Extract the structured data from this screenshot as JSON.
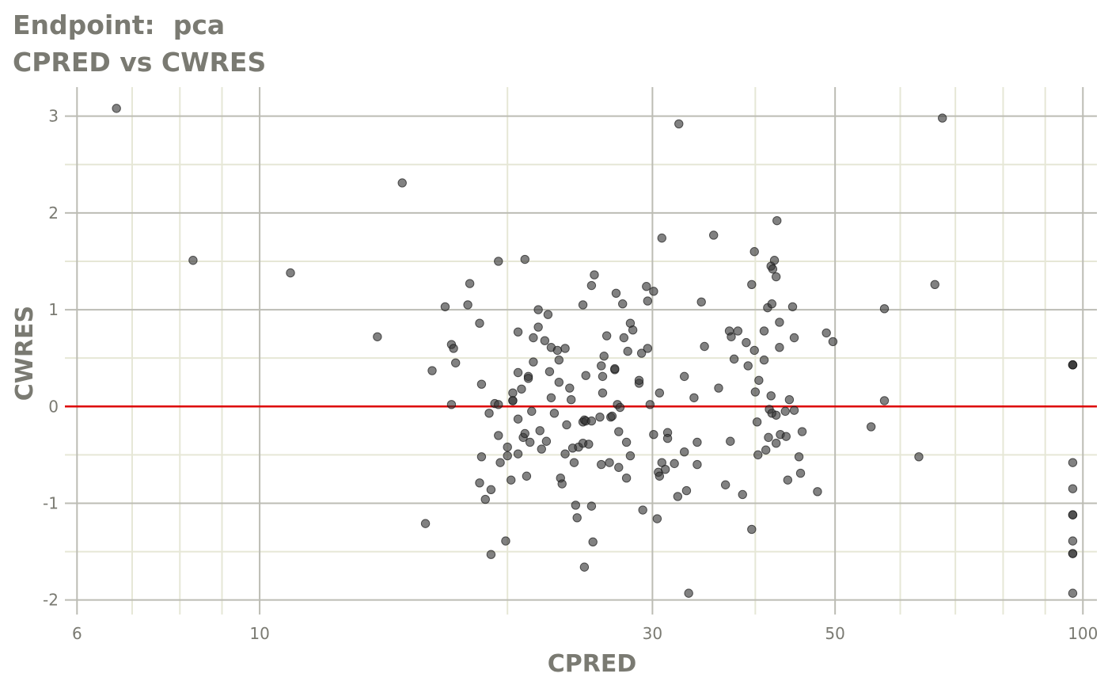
{
  "chart_data": {
    "type": "scatter",
    "title": "Endpoint:  pca",
    "subtitle": "CPRED vs CWRES",
    "xlabel": "CPRED",
    "ylabel": "CWRES",
    "x_scale": "log10",
    "xlim": [
      5.8,
      104
    ],
    "ylim": [
      -2.15,
      3.3
    ],
    "x_ticks": [
      6,
      10,
      30,
      50,
      100
    ],
    "y_ticks": [
      -2,
      -1,
      0,
      1,
      2,
      3
    ],
    "reference_line": {
      "y": 0,
      "color": "#dd0000"
    },
    "grid": true,
    "legend": "none",
    "point_color": "#333333",
    "points": [
      [
        6.7,
        3.08
      ],
      [
        8.3,
        1.51
      ],
      [
        10.9,
        1.38
      ],
      [
        13.9,
        0.72
      ],
      [
        14.9,
        2.31
      ],
      [
        15.9,
        -1.21
      ],
      [
        16.2,
        0.37
      ],
      [
        16.8,
        1.03
      ],
      [
        17.1,
        0.02
      ],
      [
        17.1,
        0.64
      ],
      [
        17.2,
        0.6
      ],
      [
        17.3,
        0.45
      ],
      [
        17.9,
        1.05
      ],
      [
        18.0,
        1.27
      ],
      [
        18.5,
        0.86
      ],
      [
        18.6,
        0.23
      ],
      [
        18.6,
        -0.52
      ],
      [
        18.5,
        -0.79
      ],
      [
        18.8,
        -0.96
      ],
      [
        19.0,
        -0.07
      ],
      [
        19.1,
        -0.86
      ],
      [
        19.1,
        -1.53
      ],
      [
        19.3,
        0.03
      ],
      [
        19.5,
        1.5
      ],
      [
        19.5,
        0.02
      ],
      [
        19.5,
        -0.3
      ],
      [
        19.6,
        -0.58
      ],
      [
        19.9,
        -1.39
      ],
      [
        20.0,
        -0.51
      ],
      [
        20.0,
        -0.42
      ],
      [
        20.2,
        -0.76
      ],
      [
        20.3,
        0.14
      ],
      [
        20.3,
        0.06
      ],
      [
        20.3,
        0.06
      ],
      [
        20.6,
        0.77
      ],
      [
        20.6,
        0.35
      ],
      [
        20.6,
        -0.13
      ],
      [
        20.6,
        -0.49
      ],
      [
        20.8,
        0.18
      ],
      [
        20.9,
        -0.32
      ],
      [
        21.0,
        1.52
      ],
      [
        21.0,
        -0.28
      ],
      [
        21.1,
        -0.72
      ],
      [
        21.2,
        0.31
      ],
      [
        21.2,
        0.29
      ],
      [
        21.3,
        -0.37
      ],
      [
        21.4,
        -0.05
      ],
      [
        21.5,
        0.71
      ],
      [
        21.5,
        0.46
      ],
      [
        21.8,
        1.0
      ],
      [
        21.8,
        0.82
      ],
      [
        21.9,
        -0.25
      ],
      [
        22.0,
        -0.44
      ],
      [
        22.2,
        0.68
      ],
      [
        22.3,
        -0.36
      ],
      [
        22.4,
        0.95
      ],
      [
        22.5,
        0.36
      ],
      [
        22.6,
        0.61
      ],
      [
        22.6,
        0.09
      ],
      [
        22.8,
        -0.07
      ],
      [
        23.0,
        0.58
      ],
      [
        23.1,
        0.48
      ],
      [
        23.1,
        0.25
      ],
      [
        23.2,
        -0.74
      ],
      [
        23.3,
        -0.8
      ],
      [
        23.5,
        0.6
      ],
      [
        23.5,
        -0.49
      ],
      [
        23.6,
        -0.19
      ],
      [
        23.8,
        0.19
      ],
      [
        23.9,
        0.07
      ],
      [
        24.0,
        -0.43
      ],
      [
        24.1,
        -0.58
      ],
      [
        24.2,
        -1.02
      ],
      [
        24.3,
        -1.15
      ],
      [
        24.4,
        -0.42
      ],
      [
        24.7,
        1.05
      ],
      [
        24.7,
        -0.16
      ],
      [
        24.7,
        -0.38
      ],
      [
        24.8,
        -0.14
      ],
      [
        24.9,
        -0.15
      ],
      [
        24.9,
        0.32
      ],
      [
        24.8,
        -1.66
      ],
      [
        25.1,
        -0.39
      ],
      [
        25.3,
        1.25
      ],
      [
        25.3,
        -0.15
      ],
      [
        25.3,
        -1.03
      ],
      [
        25.4,
        -1.4
      ],
      [
        25.5,
        1.36
      ],
      [
        25.9,
        -0.11
      ],
      [
        26.0,
        0.42
      ],
      [
        26.0,
        -0.6
      ],
      [
        26.1,
        0.31
      ],
      [
        26.1,
        0.14
      ],
      [
        26.2,
        0.52
      ],
      [
        26.4,
        0.73
      ],
      [
        26.6,
        -0.58
      ],
      [
        26.7,
        -0.11
      ],
      [
        26.8,
        -0.1
      ],
      [
        27.0,
        0.38
      ],
      [
        27.0,
        0.39
      ],
      [
        27.1,
        1.17
      ],
      [
        27.2,
        0.02
      ],
      [
        27.3,
        -0.26
      ],
      [
        27.3,
        -0.63
      ],
      [
        27.4,
        -0.01
      ],
      [
        27.6,
        1.06
      ],
      [
        27.7,
        0.71
      ],
      [
        27.9,
        -0.37
      ],
      [
        27.9,
        -0.74
      ],
      [
        28.0,
        0.57
      ],
      [
        28.2,
        0.86
      ],
      [
        28.2,
        -0.51
      ],
      [
        28.4,
        0.79
      ],
      [
        28.9,
        0.24
      ],
      [
        28.9,
        0.27
      ],
      [
        29.1,
        0.55
      ],
      [
        29.2,
        -1.07
      ],
      [
        29.5,
        1.24
      ],
      [
        29.6,
        1.09
      ],
      [
        29.6,
        0.6
      ],
      [
        29.8,
        0.02
      ],
      [
        30.1,
        1.19
      ],
      [
        30.1,
        -0.29
      ],
      [
        30.4,
        -1.16
      ],
      [
        30.6,
        0.14
      ],
      [
        30.5,
        -0.68
      ],
      [
        30.6,
        -0.72
      ],
      [
        30.8,
        1.74
      ],
      [
        30.8,
        -0.58
      ],
      [
        31.1,
        -0.65
      ],
      [
        31.3,
        -0.27
      ],
      [
        31.3,
        -0.33
      ],
      [
        31.9,
        -0.59
      ],
      [
        32.2,
        -0.93
      ],
      [
        32.3,
        2.92
      ],
      [
        32.8,
        0.31
      ],
      [
        32.8,
        -0.47
      ],
      [
        33.0,
        -0.87
      ],
      [
        33.2,
        -1.93
      ],
      [
        33.7,
        0.09
      ],
      [
        34.0,
        -0.37
      ],
      [
        34.0,
        -0.6
      ],
      [
        34.4,
        1.08
      ],
      [
        34.7,
        0.62
      ],
      [
        35.6,
        1.77
      ],
      [
        36.1,
        0.19
      ],
      [
        36.8,
        -0.81
      ],
      [
        37.2,
        0.78
      ],
      [
        37.3,
        -0.36
      ],
      [
        37.4,
        0.72
      ],
      [
        37.7,
        0.49
      ],
      [
        38.1,
        0.78
      ],
      [
        38.6,
        -0.91
      ],
      [
        39.0,
        0.66
      ],
      [
        39.2,
        0.42
      ],
      [
        39.6,
        1.26
      ],
      [
        39.6,
        -1.27
      ],
      [
        39.9,
        1.6
      ],
      [
        39.9,
        0.58
      ],
      [
        40.0,
        0.15
      ],
      [
        40.2,
        -0.16
      ],
      [
        40.3,
        -0.5
      ],
      [
        40.4,
        0.27
      ],
      [
        41.0,
        0.78
      ],
      [
        41.0,
        0.48
      ],
      [
        41.2,
        -0.45
      ],
      [
        41.4,
        1.02
      ],
      [
        41.5,
        -0.32
      ],
      [
        41.6,
        -0.03
      ],
      [
        41.8,
        1.45
      ],
      [
        41.8,
        0.11
      ],
      [
        41.9,
        1.06
      ],
      [
        41.9,
        -0.07
      ],
      [
        42.0,
        1.42
      ],
      [
        42.2,
        1.51
      ],
      [
        42.4,
        1.34
      ],
      [
        42.4,
        -0.09
      ],
      [
        42.4,
        -0.38
      ],
      [
        42.5,
        1.92
      ],
      [
        42.8,
        0.87
      ],
      [
        42.8,
        0.61
      ],
      [
        42.9,
        -0.29
      ],
      [
        43.5,
        -0.05
      ],
      [
        43.6,
        -0.31
      ],
      [
        43.8,
        -0.76
      ],
      [
        44.0,
        0.07
      ],
      [
        44.4,
        1.03
      ],
      [
        44.6,
        0.71
      ],
      [
        44.6,
        -0.04
      ],
      [
        45.2,
        -0.52
      ],
      [
        45.4,
        -0.69
      ],
      [
        45.6,
        -0.26
      ],
      [
        47.6,
        -0.88
      ],
      [
        48.8,
        0.76
      ],
      [
        49.7,
        0.67
      ],
      [
        55.3,
        -0.21
      ],
      [
        57.4,
        1.01
      ],
      [
        57.4,
        0.06
      ],
      [
        63.2,
        -0.52
      ],
      [
        66.1,
        1.26
      ],
      [
        67.5,
        2.98
      ],
      [
        97.2,
        0.43
      ],
      [
        97.2,
        0.43
      ],
      [
        97.2,
        0.43
      ],
      [
        97.2,
        -0.58
      ],
      [
        97.2,
        -0.85
      ],
      [
        97.2,
        -1.12
      ],
      [
        97.2,
        -1.12
      ],
      [
        97.2,
        -1.39
      ],
      [
        97.2,
        -1.52
      ],
      [
        97.2,
        -1.52
      ],
      [
        97.2,
        -1.93
      ]
    ]
  }
}
